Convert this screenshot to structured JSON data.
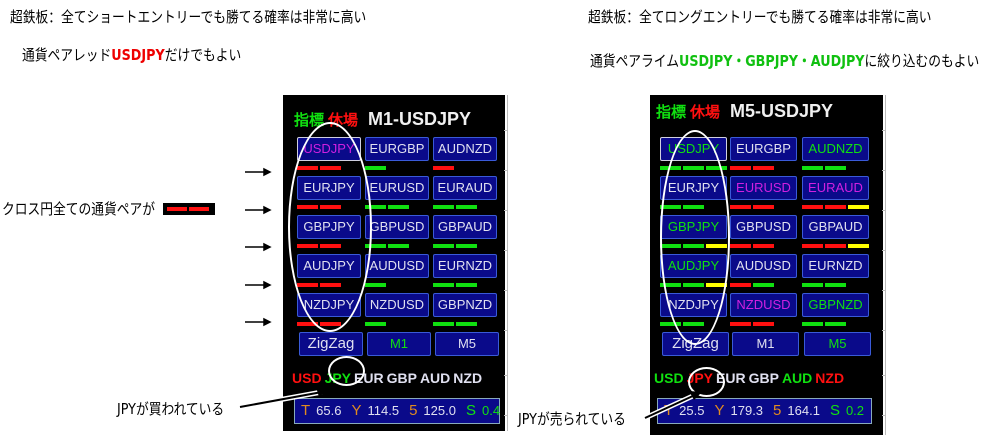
{
  "annotations": {
    "left_title": "超鉄板：全てショートエントリーでも勝てる確率は非常に高い",
    "left_sub_prefix": "通貨ペアレッド",
    "left_sub_highlight": "USDJPY",
    "left_sub_suffix": "だけでもよい",
    "right_title": "超鉄板：全てロングエントリーでも勝てる確率は非常に高い",
    "right_sub_prefix": "通貨ペアライム",
    "right_sub_highlight": "USDJPY・GBPJPY・AUDJPY",
    "right_sub_suffix": "に絞り込むのもよい",
    "cross_yen": "クロス円全ての通貨ペアが",
    "jpy_bought": "JPYが買われている",
    "jpy_sold": "JPYが売られている"
  },
  "colors": {
    "red": "#ff1010",
    "green": "#10e010",
    "yellow": "#ffff00",
    "magenta": "#d020e0",
    "white": "#e0e0f0",
    "orange": "#e08a20"
  },
  "panels": [
    {
      "id": "left",
      "label_indicator": "指標",
      "label_closed": "休場",
      "title": "M1-USDJPY",
      "pairs": [
        {
          "name": "USDJPY",
          "color": "magenta",
          "bars": [
            "red",
            "red"
          ],
          "selected": true
        },
        {
          "name": "EURGBP",
          "color": "white",
          "bars": [
            "green"
          ]
        },
        {
          "name": "AUDNZD",
          "color": "white",
          "bars": [
            "red"
          ]
        },
        {
          "name": "EURJPY",
          "color": "white",
          "bars": [
            "red",
            "red"
          ]
        },
        {
          "name": "EURUSD",
          "color": "white",
          "bars": [
            "green",
            "green"
          ]
        },
        {
          "name": "EURAUD",
          "color": "white",
          "bars": [
            "green",
            "green"
          ]
        },
        {
          "name": "GBPJPY",
          "color": "white",
          "bars": [
            "red",
            "red"
          ]
        },
        {
          "name": "GBPUSD",
          "color": "white",
          "bars": [
            "green",
            "green"
          ]
        },
        {
          "name": "GBPAUD",
          "color": "white",
          "bars": [
            "green",
            "green"
          ]
        },
        {
          "name": "AUDJPY",
          "color": "white",
          "bars": [
            "red",
            "red"
          ]
        },
        {
          "name": "AUDUSD",
          "color": "white",
          "bars": [
            "green"
          ]
        },
        {
          "name": "EURNZD",
          "color": "white",
          "bars": [
            "green",
            "green"
          ]
        },
        {
          "name": "NZDJPY",
          "color": "white",
          "bars": [
            "red",
            "red"
          ]
        },
        {
          "name": "NZDUSD",
          "color": "white",
          "bars": [
            "green"
          ]
        },
        {
          "name": "GBPNZD",
          "color": "white",
          "bars": [
            "green",
            "green"
          ]
        }
      ],
      "controls": [
        {
          "label": "ZigZag",
          "color": "white"
        },
        {
          "label": "M1",
          "color": "green"
        },
        {
          "label": "M5",
          "color": "white"
        }
      ],
      "currencies": [
        {
          "code": "USD",
          "color": "red"
        },
        {
          "code": "JPY",
          "color": "green"
        },
        {
          "code": "EUR",
          "color": "white"
        },
        {
          "code": "GBP",
          "color": "white"
        },
        {
          "code": "AUD",
          "color": "white"
        },
        {
          "code": "NZD",
          "color": "white"
        }
      ],
      "info": [
        {
          "k": "T",
          "v": "65.6"
        },
        {
          "k": "Y",
          "v": "114.5"
        },
        {
          "k": "5",
          "v": "125.0"
        },
        {
          "k": "S",
          "v": "0.4"
        }
      ]
    },
    {
      "id": "right",
      "label_indicator": "指標",
      "label_closed": "休場",
      "title": "M5-USDJPY",
      "pairs": [
        {
          "name": "USDJPY",
          "color": "green",
          "bars": [
            "green",
            "green",
            "green"
          ],
          "selected": true
        },
        {
          "name": "EURGBP",
          "color": "white",
          "bars": [
            "red",
            "red"
          ]
        },
        {
          "name": "AUDNZD",
          "color": "green",
          "bars": [
            "green",
            "green"
          ]
        },
        {
          "name": "EURJPY",
          "color": "white",
          "bars": [
            "green",
            "green"
          ]
        },
        {
          "name": "EURUSD",
          "color": "magenta",
          "bars": [
            "red",
            "red"
          ]
        },
        {
          "name": "EURAUD",
          "color": "magenta",
          "bars": [
            "red",
            "red",
            "yellow"
          ]
        },
        {
          "name": "GBPJPY",
          "color": "green",
          "bars": [
            "green",
            "green",
            "yellow"
          ]
        },
        {
          "name": "GBPUSD",
          "color": "white",
          "bars": [
            "red",
            "red"
          ]
        },
        {
          "name": "GBPAUD",
          "color": "white",
          "bars": [
            "red",
            "red",
            "yellow"
          ]
        },
        {
          "name": "AUDJPY",
          "color": "green",
          "bars": [
            "green",
            "green",
            "yellow"
          ]
        },
        {
          "name": "AUDUSD",
          "color": "white",
          "bars": [
            "red",
            "green"
          ]
        },
        {
          "name": "EURNZD",
          "color": "white",
          "bars": [
            "green",
            "green"
          ]
        },
        {
          "name": "NZDJPY",
          "color": "white",
          "bars": [
            "green",
            "green"
          ]
        },
        {
          "name": "NZDUSD",
          "color": "magenta",
          "bars": [
            "red",
            "red"
          ]
        },
        {
          "name": "GBPNZD",
          "color": "green",
          "bars": [
            "green",
            "green"
          ]
        }
      ],
      "controls": [
        {
          "label": "ZigZag",
          "color": "white"
        },
        {
          "label": "M1",
          "color": "white"
        },
        {
          "label": "M5",
          "color": "green"
        }
      ],
      "currencies": [
        {
          "code": "USD",
          "color": "green"
        },
        {
          "code": "JPY",
          "color": "red"
        },
        {
          "code": "EUR",
          "color": "white"
        },
        {
          "code": "GBP",
          "color": "white"
        },
        {
          "code": "AUD",
          "color": "green"
        },
        {
          "code": "NZD",
          "color": "red"
        }
      ],
      "info": [
        {
          "k": "T",
          "v": "25.5"
        },
        {
          "k": "Y",
          "v": "179.3"
        },
        {
          "k": "5",
          "v": "164.1"
        },
        {
          "k": "S",
          "v": "0.2"
        }
      ]
    }
  ]
}
